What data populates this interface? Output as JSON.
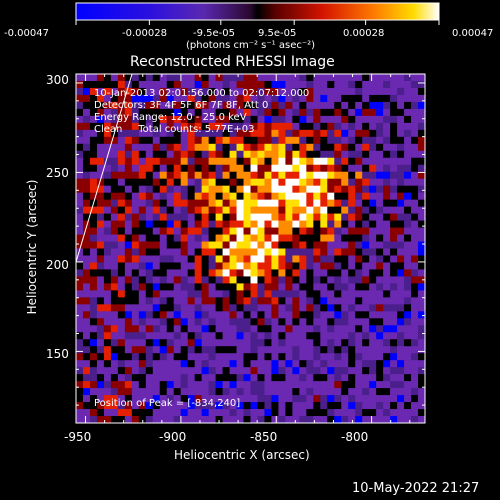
{
  "colorbar": {
    "ticks": [
      "-0.00047",
      "-0.00028",
      "-9.5e-05",
      "9.5e-05",
      "0.00028",
      "0.00047"
    ],
    "tick_values": [
      -0.00047,
      -0.00028,
      -9.5e-05,
      9.5e-05,
      0.00028,
      0.00047
    ],
    "range": [
      -0.00047,
      0.00047
    ],
    "units_label": "(photons cm⁻² s⁻¹ asec⁻²)"
  },
  "chart_data": {
    "type": "heatmap",
    "title": "Reconstructed RHESSI Image",
    "xlabel": "Heliocentric X (arcsec)",
    "ylabel": "Heliocentric Y (arcsec)",
    "xlim": [
      -955,
      -772
    ],
    "ylim": [
      110,
      305
    ],
    "x_ticks": [
      -950,
      -900,
      -850,
      -800
    ],
    "y_ticks": [
      150,
      200,
      250,
      300
    ],
    "x_tick_labels": [
      "-950",
      "-900",
      "-850",
      "-800"
    ],
    "y_tick_labels": [
      "150",
      "200",
      "250",
      "300"
    ],
    "grid": false,
    "peak": [
      -834,
      240
    ],
    "colormap": [
      "#0000ff",
      "#6a29b0",
      "#4b1f8c",
      "#000000",
      "#8a0000",
      "#e52000",
      "#ff8c00",
      "#ffe000",
      "#ffffff"
    ]
  },
  "info": {
    "lines": [
      "10-Jan-2013 02:01:56.000 to 02:07:12.000",
      "Detectors: 3F 4F 5F 6F 7F 8F, Att 0",
      "Energy Range: 12.0 - 25.0 keV",
      "Clean     Total counts: 5.77E+03"
    ],
    "peak_text": "Position of Peak = [-834,240]"
  },
  "footer": {
    "timestamp": "10-May-2022 21:27"
  }
}
